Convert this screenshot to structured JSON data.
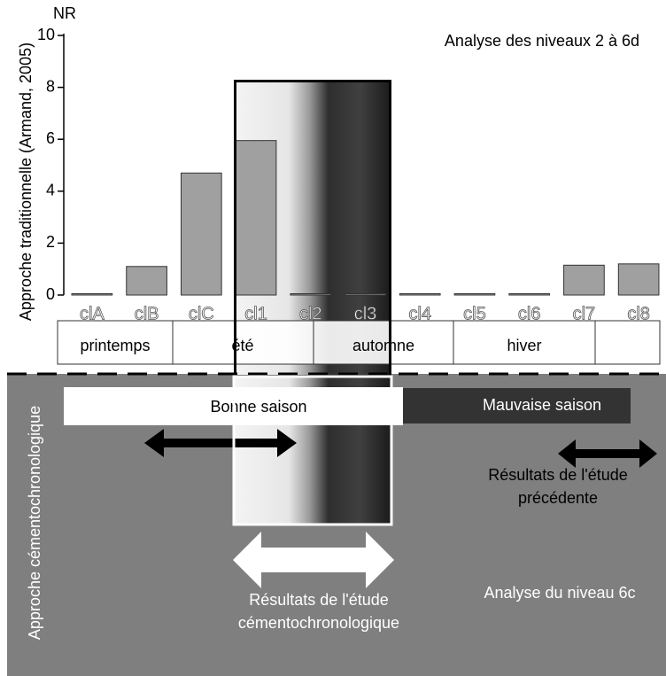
{
  "chart_data": {
    "type": "bar",
    "title": "Analyse des niveaux 2 à 6d",
    "y_unit": "NR",
    "ylabel": "Approche traditionnelle  (Armand, 2005)",
    "categories": [
      "clA",
      "clB",
      "clC",
      "cl1",
      "cl2",
      "cl3",
      "cl4",
      "cl5",
      "cl6",
      "cl7",
      "cl8"
    ],
    "values": [
      0.05,
      1.1,
      4.7,
      5.95,
      0.05,
      0.05,
      0.05,
      0.05,
      0.05,
      1.15,
      1.2
    ],
    "color": "#a0a0a0",
    "ylim": [
      0,
      10
    ],
    "yticks": [
      0,
      2,
      4,
      6,
      8,
      10
    ],
    "seasons": [
      "printemps",
      "été",
      "automne",
      "hiver"
    ],
    "lower_label": "Approche cémentochronologique",
    "good_season": "Bonne saison",
    "bad_season": "Mauvaise saison",
    "previous_results": [
      "Résultats de l'étude",
      "précédente"
    ],
    "cemento_results": [
      "Résultats de l'étude",
      "cémentochronologique"
    ],
    "level_note": "Analyse du niveau 6c"
  }
}
